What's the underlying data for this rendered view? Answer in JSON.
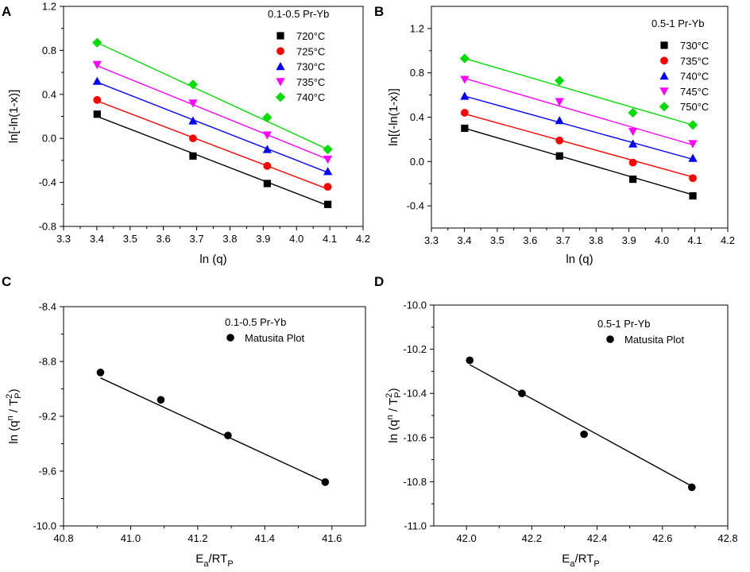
{
  "chart_data": [
    {
      "panel_label": "A",
      "type": "scatter",
      "legend_title": "0.1-0.5 Pr-Yb",
      "xlabel": "ln (q)",
      "ylabel": "ln[-ln(1-x)]",
      "xlim": [
        3.3,
        4.2
      ],
      "ylim": [
        -0.8,
        1.2
      ],
      "x_ticks": [
        "3.3",
        "3.4",
        "3.5",
        "3.6",
        "3.7",
        "3.8",
        "3.9",
        "4.0",
        "4.1",
        "4.2"
      ],
      "y_ticks": [
        "-0.8",
        "-0.4",
        "0.0",
        "0.4",
        "0.8",
        "1.2"
      ],
      "x": [
        3.401,
        3.689,
        3.912,
        4.094
      ],
      "series": [
        {
          "name": "720°C",
          "marker": "square",
          "color": "#000000",
          "values": [
            0.22,
            -0.16,
            -0.41,
            -0.6
          ],
          "fit": [
            0.2,
            -0.61
          ]
        },
        {
          "name": "725°C",
          "marker": "circle",
          "color": "#ff0000",
          "values": [
            0.35,
            0.0,
            -0.25,
            -0.44
          ],
          "fit": [
            0.34,
            -0.46
          ]
        },
        {
          "name": "730°C",
          "marker": "triangle-up",
          "color": "#0000ff",
          "values": [
            0.52,
            0.16,
            -0.1,
            -0.3
          ],
          "fit": [
            0.51,
            -0.31
          ]
        },
        {
          "name": "735°C",
          "marker": "triangle-down",
          "color": "#ff00ff",
          "values": [
            0.67,
            0.32,
            0.03,
            -0.19
          ],
          "fit": [
            0.66,
            -0.19
          ]
        },
        {
          "name": "740°C",
          "marker": "diamond",
          "color": "#00dd00",
          "values": [
            0.87,
            0.49,
            0.19,
            -0.1
          ],
          "fit": [
            0.87,
            -0.1
          ]
        }
      ]
    },
    {
      "panel_label": "B",
      "type": "scatter",
      "legend_title": "0.5-1 Pr-Yb",
      "xlabel": "ln (q)",
      "ylabel": "ln[(-ln(1-x)]",
      "xlim": [
        3.3,
        4.2
      ],
      "ylim": [
        -0.6,
        1.4
      ],
      "x_ticks": [
        "3.3",
        "3.4",
        "3.5",
        "3.6",
        "3.7",
        "3.8",
        "3.9",
        "4.0",
        "4.1",
        "4.2"
      ],
      "y_ticks": [
        "-0.4",
        "0.0",
        "0.4",
        "0.8",
        "1.2"
      ],
      "x": [
        3.401,
        3.689,
        3.912,
        4.094
      ],
      "series": [
        {
          "name": "730°C",
          "marker": "square",
          "color": "#000000",
          "values": [
            0.3,
            0.05,
            -0.16,
            -0.31
          ],
          "fit": [
            0.3,
            -0.3
          ]
        },
        {
          "name": "735°C",
          "marker": "circle",
          "color": "#ff0000",
          "values": [
            0.44,
            0.19,
            -0.01,
            -0.15
          ],
          "fit": [
            0.43,
            -0.14
          ]
        },
        {
          "name": "740°C",
          "marker": "triangle-up",
          "color": "#0000ff",
          "values": [
            0.59,
            0.37,
            0.16,
            0.03
          ],
          "fit": [
            0.59,
            0.02
          ]
        },
        {
          "name": "745°C",
          "marker": "triangle-down",
          "color": "#ff00ff",
          "values": [
            0.74,
            0.54,
            0.27,
            0.16
          ],
          "fit": [
            0.75,
            0.15
          ]
        },
        {
          "name": "750°C",
          "marker": "diamond",
          "color": "#00dd00",
          "values": [
            0.93,
            0.73,
            0.44,
            0.33
          ],
          "fit": [
            0.93,
            0.33
          ]
        }
      ]
    },
    {
      "panel_label": "C",
      "type": "scatter",
      "annotation": "0.1-0.5 Pr-Yb",
      "xlabel": "E",
      "xlabel_sub": "a",
      "xlabel_rest": "/RT",
      "xlabel_sub2": "P",
      "ylabel_main": "ln (q",
      "ylabel_sup": "n",
      "ylabel_mid": " / T",
      "ylabel_sup2": "2",
      "ylabel_sub2": "P",
      "ylabel_end": ")",
      "xlim": [
        40.8,
        41.7
      ],
      "ylim": [
        -10.0,
        -8.4
      ],
      "x_ticks": [
        "40.8",
        "41.0",
        "41.2",
        "41.4",
        "41.6"
      ],
      "y_ticks": [
        "-10.0",
        "-9.6",
        "-9.2",
        "-8.8",
        "-8.4"
      ],
      "series": [
        {
          "name": "Matusita Plot",
          "marker": "circle",
          "color": "#000000",
          "x": [
            40.91,
            41.09,
            41.29,
            41.58
          ],
          "values": [
            -8.88,
            -9.08,
            -9.34,
            -9.68
          ],
          "fit": [
            [
              40.91,
              -8.92
            ],
            [
              41.58,
              -9.68
            ]
          ]
        }
      ]
    },
    {
      "panel_label": "D",
      "type": "scatter",
      "annotation": "0.5-1 Pr-Yb",
      "xlabel": "E",
      "xlabel_sub": "a",
      "xlabel_rest": "/RT",
      "xlabel_sub2": "P",
      "ylabel_main": "ln (q",
      "ylabel_sup": "n",
      "ylabel_mid": " / T",
      "ylabel_sup2": "2",
      "ylabel_sub2": "P",
      "ylabel_end": ")",
      "xlim": [
        41.9,
        42.8
      ],
      "ylim": [
        -11.0,
        -10.0
      ],
      "x_ticks": [
        "42.0",
        "42.2",
        "42.4",
        "42.6",
        "42.8"
      ],
      "y_ticks": [
        "-11.0",
        "-10.8",
        "-10.6",
        "-10.4",
        "-10.2",
        "-10.0"
      ],
      "series": [
        {
          "name": "Matusita Plot",
          "marker": "circle",
          "color": "#000000",
          "x": [
            42.01,
            42.17,
            42.36,
            42.69
          ],
          "values": [
            -10.25,
            -10.4,
            -10.585,
            -10.825
          ],
          "fit": [
            [
              42.01,
              -10.27
            ],
            [
              42.69,
              -10.82
            ]
          ]
        }
      ]
    }
  ]
}
